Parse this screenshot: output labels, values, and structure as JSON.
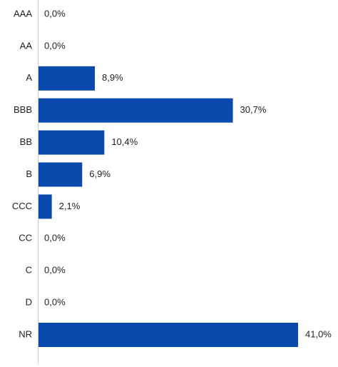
{
  "chart_data": {
    "type": "bar",
    "orientation": "horizontal",
    "categories": [
      "AAA",
      "AA",
      "A",
      "BBB",
      "BB",
      "B",
      "CCC",
      "CC",
      "C",
      "D",
      "NR"
    ],
    "values": [
      0.0,
      0.0,
      8.9,
      30.7,
      10.4,
      6.9,
      2.1,
      0.0,
      0.0,
      0.0,
      41.0
    ],
    "value_labels": [
      "0,0%",
      "0,0%",
      "8,9%",
      "30,7%",
      "10,4%",
      "6,9%",
      "2,1%",
      "0,0%",
      "0,0%",
      "0,0%",
      "41,0%"
    ],
    "color": "#0a4aad"
  }
}
